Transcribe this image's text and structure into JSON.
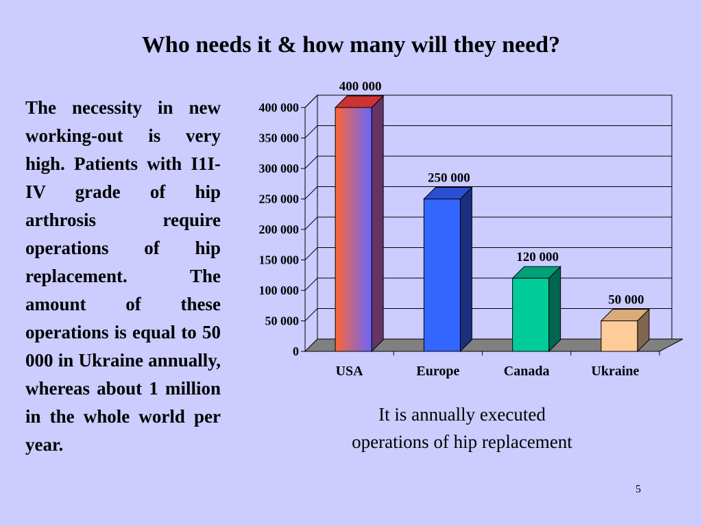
{
  "slide": {
    "title": "Who needs it & how many will they need?",
    "body_text": "The necessity in new working-out is very high. Patients with I1I-IV grade of hip arthrosis require operations of hip replacement. The amount of these operations is equal to 50 000 in Ukraine annually, whereas about 1 million in the whole world per year.",
    "caption_line1": "It is annually executed",
    "caption_line2": "operations of hip replacement",
    "page_number": "5"
  },
  "chart_data": {
    "type": "bar",
    "title": "",
    "xlabel": "",
    "ylabel": "",
    "categories": [
      "USA",
      "Europe",
      "Canada",
      "Ukraine"
    ],
    "values": [
      400000,
      250000,
      120000,
      50000
    ],
    "data_labels": [
      "400 000",
      "250 000",
      "120 000",
      "50 000"
    ],
    "ylim": [
      0,
      400000
    ],
    "yticks": [
      0,
      50000,
      100000,
      150000,
      200000,
      250000,
      300000,
      350000,
      400000
    ],
    "ytick_labels": [
      "0",
      "50 000",
      "100 000",
      "150 000",
      "200 000",
      "250 000",
      "300 000",
      "350 000",
      "400 000"
    ],
    "grid": true,
    "legend": "none",
    "style": "3d-columns",
    "bar_colors": [
      {
        "front_start": "#ff6633",
        "front_end": "#6666ff",
        "side": "#663366",
        "top": "#cc3333"
      },
      {
        "front_start": "#3366ff",
        "front_end": "#3366ff",
        "side": "#1a2f80",
        "top": "#2a4fd0"
      },
      {
        "front_start": "#00cc99",
        "front_end": "#00cc99",
        "side": "#006650",
        "top": "#00a07a"
      },
      {
        "front_start": "#ffcc99",
        "front_end": "#ffcc99",
        "side": "#806650",
        "top": "#d9aa7a"
      }
    ],
    "plot_background": "#ccccff",
    "floor_color": "#808080"
  }
}
